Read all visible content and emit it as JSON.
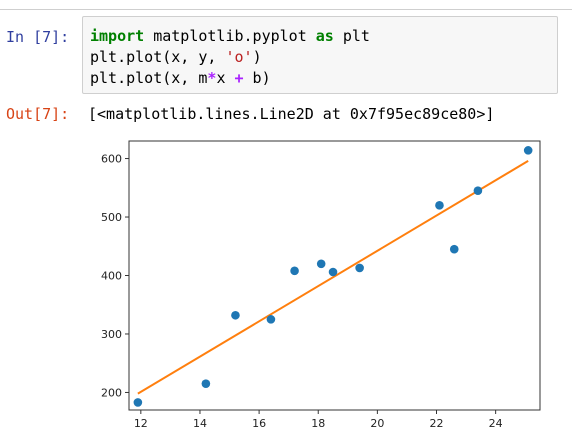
{
  "input_cell": {
    "prompt": "In [7]:",
    "lines": [
      [
        "import",
        " matplotlib.pyplot ",
        "as",
        " plt"
      ],
      [
        "plt.plot(x, y, ",
        "'o'",
        ")"
      ],
      [
        "plt.plot(x, m",
        "*",
        "x ",
        "+",
        " b)"
      ]
    ]
  },
  "output_cell": {
    "prompt": "Out[7]:",
    "text": "[<matplotlib.lines.Line2D at 0x7f95ec89ce80>]"
  },
  "colors": {
    "points": "#1f77b4",
    "line": "#ff7f0e"
  },
  "chart_data": {
    "type": "scatter",
    "xlim": [
      11.6,
      25.5
    ],
    "ylim": [
      170,
      630
    ],
    "xticks": [
      12,
      14,
      16,
      18,
      20,
      22,
      24
    ],
    "yticks": [
      200,
      300,
      400,
      500,
      600
    ],
    "grid": false,
    "series": [
      {
        "type": "scatter",
        "x": [
          11.9,
          14.2,
          15.2,
          16.4,
          17.2,
          18.1,
          18.5,
          19.4,
          22.1,
          22.6,
          23.4,
          25.1
        ],
        "y": [
          183,
          215,
          332,
          325,
          408,
          420,
          406,
          413,
          520,
          445,
          545,
          614
        ]
      },
      {
        "type": "line",
        "x": [
          11.9,
          25.1
        ],
        "y": [
          198,
          596
        ]
      }
    ]
  }
}
